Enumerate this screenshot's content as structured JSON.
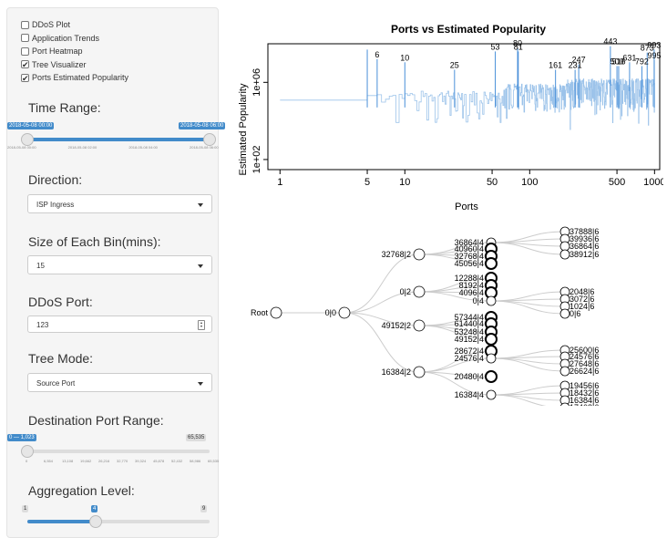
{
  "sidebar": {
    "checkboxes": [
      {
        "label": "DDoS Plot",
        "checked": false
      },
      {
        "label": "Application Trends",
        "checked": false
      },
      {
        "label": "Port Heatmap",
        "checked": false
      },
      {
        "label": "Tree Visualizer",
        "checked": true
      },
      {
        "label": "Ports Estimated Popularity",
        "checked": true
      }
    ],
    "time_range": {
      "label": "Time Range:",
      "from": "2018-05-08 00:00",
      "to": "2018-05-08 06:00",
      "ticks": [
        "2018-05-08 00:00",
        "2018-05-08 02:00",
        "2018-05-08 04:00",
        "2018-05-08 06:00"
      ],
      "from_fraction": 0.0,
      "to_fraction": 1.0
    },
    "direction": {
      "label": "Direction:",
      "value": "ISP Ingress"
    },
    "bin_size": {
      "label": "Size of Each Bin(mins):",
      "value": "15"
    },
    "ddos_port": {
      "label": "DDoS Port:",
      "value": "123"
    },
    "tree_mode": {
      "label": "Tree Mode:",
      "value": "Source Port"
    },
    "dest_port_range": {
      "label": "Destination Port Range:",
      "from": "0 — 1,023",
      "max": "65,535",
      "ticks": [
        "0",
        "6,554",
        "13,108",
        "19,662",
        "26,216",
        "32,770",
        "39,324",
        "45,878",
        "52,432",
        "58,986",
        "65,535"
      ],
      "fraction": 0.0
    },
    "aggregation": {
      "label": "Aggregation Level:",
      "min": "1",
      "value": "4",
      "max": "9",
      "fraction": 0.375
    }
  },
  "chart_data": {
    "type": "line",
    "title": "Ports vs Estimated Popularity",
    "xlabel": "Ports",
    "ylabel": "Estimated Popularity",
    "x_scale": "log",
    "y_scale": "log",
    "xlim": [
      0.8,
      1100
    ],
    "ylim": [
      30,
      100000000
    ],
    "x_ticks": [
      {
        "value": 1,
        "label": "1"
      },
      {
        "value": 5,
        "label": "5"
      },
      {
        "value": 10,
        "label": "10"
      },
      {
        "value": 50,
        "label": "50"
      },
      {
        "value": 100,
        "label": "100"
      },
      {
        "value": 500,
        "label": "500"
      },
      {
        "value": 1000,
        "label": "1000"
      }
    ],
    "y_ticks": [
      {
        "value": 100,
        "label": "1e+02"
      },
      {
        "value": 1000000,
        "label": "1e+06"
      }
    ],
    "line_color": "#4a90d9",
    "series_color_light": "#9cc3ea",
    "peaks": [
      {
        "port": 6,
        "value": 16000000,
        "label": "6"
      },
      {
        "port": 10,
        "value": 11000000,
        "label": "10"
      },
      {
        "port": 25,
        "value": 4500000,
        "label": "25"
      },
      {
        "port": 53,
        "value": 40000000,
        "label": "53"
      },
      {
        "port": 80,
        "value": 60000000,
        "label": "80"
      },
      {
        "port": 81,
        "value": 40000000,
        "label": "81"
      },
      {
        "port": 443,
        "value": 75000000,
        "label": "443"
      },
      {
        "port": 247,
        "value": 8500000,
        "label": "247"
      },
      {
        "port": 161,
        "value": 4500000,
        "label": "161"
      },
      {
        "port": 231,
        "value": 4500000,
        "label": "231"
      },
      {
        "port": 5,
        "value": 50000000,
        "label": ""
      },
      {
        "port": 993,
        "value": 50000000,
        "label": "993"
      },
      {
        "port": 873,
        "value": 35000000,
        "label": "873"
      },
      {
        "port": 995,
        "value": 14000000,
        "label": "995"
      },
      {
        "port": 631,
        "value": 11000000,
        "label": "631"
      },
      {
        "port": 500,
        "value": 7000000,
        "label": "500"
      },
      {
        "port": 516,
        "value": 7000000,
        "label": "516"
      },
      {
        "port": 792,
        "value": 7000000,
        "label": "792"
      }
    ],
    "extra_labels": [
      "5",
      "1",
      "7",
      "5",
      "92",
      "1",
      "4",
      "6"
    ]
  },
  "tree": {
    "root": "Root",
    "level1": "0|0",
    "level2": [
      "32768|2",
      "0|2",
      "49152|2",
      "16384|2"
    ],
    "level3": [
      [
        "36864|4",
        "40960|4",
        "32768|4",
        "45056|4"
      ],
      [
        "12288|4",
        "8192|4",
        "4096|4",
        "0|4"
      ],
      [
        "57344|4",
        "61440|4",
        "53248|4",
        "49152|4"
      ],
      [
        "28672|4",
        "24576|4",
        "20480|4",
        "16384|4"
      ]
    ],
    "level4": {
      "a": [
        "37888|6",
        "39936|6",
        "36864|6",
        "38912|6"
      ],
      "b": [
        "2048|6",
        "3072|6",
        "1024|6",
        "0|6"
      ],
      "c": [
        "25600|6",
        "24576|6",
        "27648|6",
        "26624|6"
      ],
      "d": [
        "19456|6",
        "18432|6",
        "16384|6",
        "17408|6"
      ]
    }
  },
  "colors": {
    "accent": "#428bca",
    "sidebar_bg": "#f5f5f5",
    "plot_line": "#4a90d9"
  }
}
